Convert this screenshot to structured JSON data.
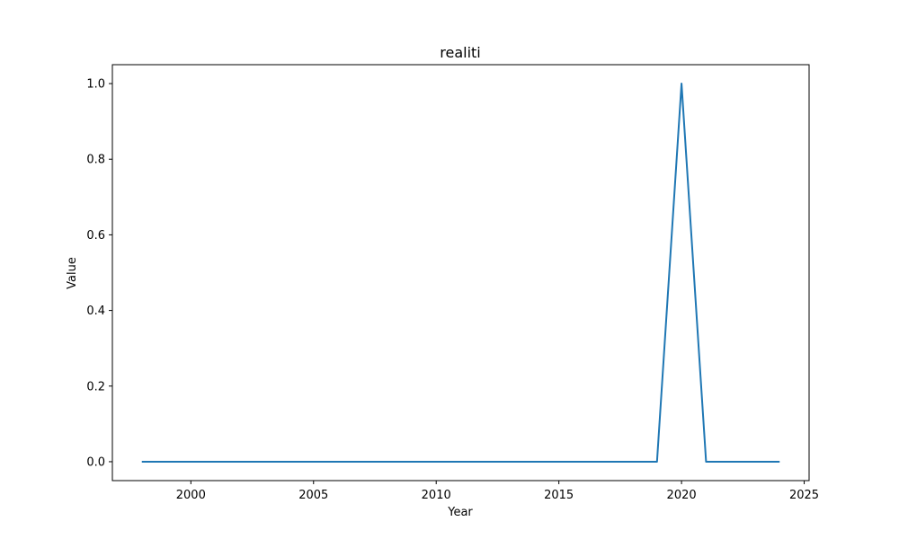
{
  "chart_data": {
    "type": "line",
    "title": "realiti",
    "xlabel": "Year",
    "ylabel": "Value",
    "xlim": [
      1996.8,
      2025.2
    ],
    "ylim": [
      -0.05,
      1.05
    ],
    "x_ticks": [
      2000,
      2005,
      2010,
      2015,
      2020,
      2025
    ],
    "y_ticks": [
      0.0,
      0.2,
      0.4,
      0.6,
      0.8,
      1.0
    ],
    "y_tick_labels": [
      "0.0",
      "0.2",
      "0.4",
      "0.6",
      "0.8",
      "1.0"
    ],
    "grid": false,
    "series": [
      {
        "color": "#1f77b4",
        "x": [
          1998,
          1999,
          2000,
          2001,
          2002,
          2003,
          2004,
          2005,
          2006,
          2007,
          2008,
          2009,
          2010,
          2011,
          2012,
          2013,
          2014,
          2015,
          2016,
          2017,
          2018,
          2019,
          2020,
          2021,
          2022,
          2023,
          2024
        ],
        "values": [
          0,
          0,
          0,
          0,
          0,
          0,
          0,
          0,
          0,
          0,
          0,
          0,
          0,
          0,
          0,
          0,
          0,
          0,
          0,
          0,
          0,
          0,
          1,
          0,
          0,
          0,
          0
        ]
      }
    ]
  }
}
